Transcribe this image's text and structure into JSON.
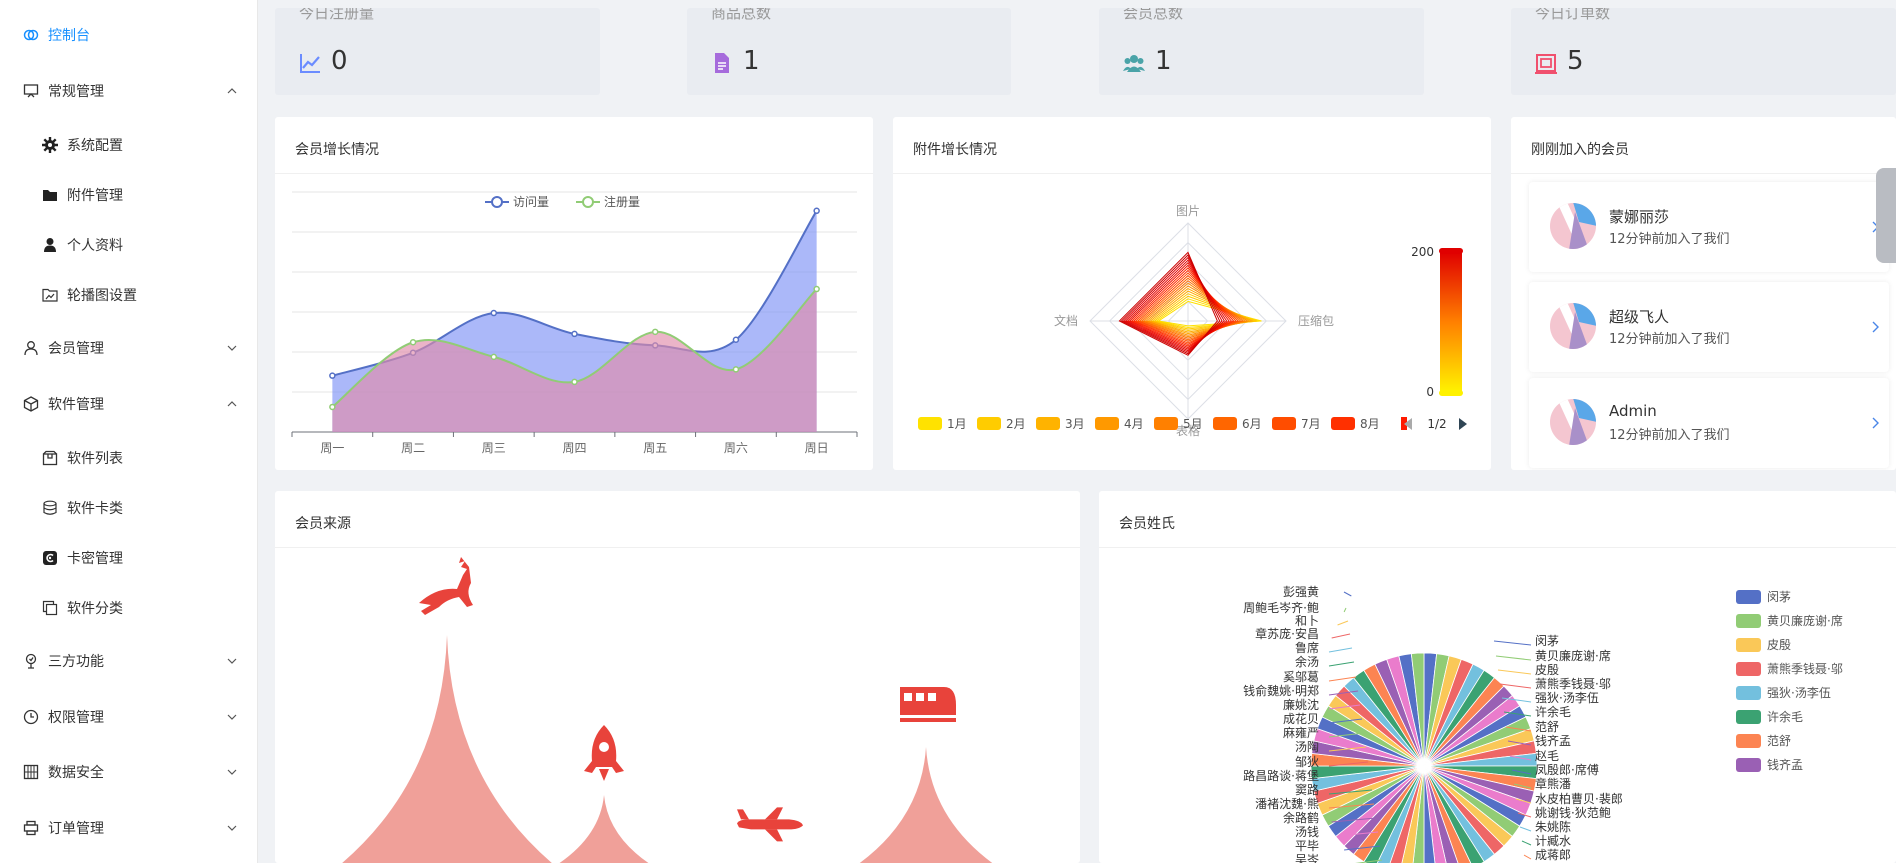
{
  "sidebar": {
    "items": [
      {
        "label": "控制台",
        "icon": "dashboard-icon",
        "active": true,
        "level": 0
      },
      {
        "label": "常规管理",
        "icon": "presentation-icon",
        "expanded": true,
        "level": 0
      },
      {
        "label": "系统配置",
        "icon": "gear-icon",
        "level": 1
      },
      {
        "label": "附件管理",
        "icon": "folder-icon",
        "level": 1
      },
      {
        "label": "个人资料",
        "icon": "user-icon",
        "level": 1
      },
      {
        "label": "轮播图设置",
        "icon": "image-icon",
        "level": 1
      },
      {
        "label": "会员管理",
        "icon": "person-icon",
        "expanded": false,
        "level": 0
      },
      {
        "label": "软件管理",
        "icon": "cube-icon",
        "expanded": true,
        "level": 0
      },
      {
        "label": "软件列表",
        "icon": "package-icon",
        "level": 1
      },
      {
        "label": "软件卡类",
        "icon": "database-icon",
        "level": 1
      },
      {
        "label": "卡密管理",
        "icon": "key-card-icon",
        "level": 1
      },
      {
        "label": "软件分类",
        "icon": "copy-icon",
        "level": 1
      },
      {
        "label": "三方功能",
        "icon": "plant-icon",
        "expanded": false,
        "level": 0
      },
      {
        "label": "权限管理",
        "icon": "clock-icon",
        "expanded": false,
        "level": 0
      },
      {
        "label": "数据安全",
        "icon": "grid-icon",
        "expanded": false,
        "level": 0
      },
      {
        "label": "订单管理",
        "icon": "printer-icon",
        "expanded": false,
        "level": 0
      }
    ]
  },
  "stats": [
    {
      "title": "今日注册量",
      "value": "0",
      "icon": "line-chart-icon",
      "color": "#6b8cff"
    },
    {
      "title": "商品总数",
      "value": "1",
      "icon": "file-icon",
      "color": "#a66bdc"
    },
    {
      "title": "会员总数",
      "value": "1",
      "icon": "users-icon",
      "color": "#4aa3a8"
    },
    {
      "title": "今日订单数",
      "value": "5",
      "icon": "order-icon",
      "color": "#f0506e"
    }
  ],
  "member_growth": {
    "title": "会员增长情况",
    "chart_data": {
      "type": "area",
      "categories": [
        "周一",
        "周二",
        "周三",
        "周四",
        "周五",
        "周六",
        "周日"
      ],
      "series": [
        {
          "name": "访问量",
          "values": [
            120,
            230,
            420,
            320,
            265,
            292,
            910
          ],
          "color": "#5470c6"
        },
        {
          "name": "注册量",
          "values": [
            -30,
            280,
            210,
            90,
            330,
            150,
            535
          ],
          "color": "#91cc75"
        }
      ],
      "ylim": [
        -150,
        1000
      ]
    }
  },
  "attachment_growth": {
    "title": "附件增长情况",
    "chart_data": {
      "type": "radar",
      "indicators": [
        "图片",
        "压缩包",
        "表格",
        "文档"
      ],
      "months": [
        "1月",
        "2月",
        "3月",
        "4月",
        "5月",
        "6月",
        "7月",
        "8月"
      ],
      "legend_colors": [
        "#ffe200",
        "#ffcc00",
        "#ffb300",
        "#ff9900",
        "#ff8000",
        "#ff6600",
        "#ff4d00",
        "#ff3000"
      ],
      "visual_map": {
        "max": "200",
        "min": "0"
      },
      "pager": "1/2"
    }
  },
  "recent_members": {
    "title": "刚刚加入的会员",
    "items": [
      {
        "name": "蒙娜丽莎",
        "time": "12分钟前加入了我们"
      },
      {
        "name": "超级飞人",
        "time": "12分钟前加入了我们"
      },
      {
        "name": "Admin",
        "time": "12分钟前加入了我们"
      }
    ]
  },
  "member_source": {
    "title": "会员来源",
    "chart_data": {
      "type": "pictorial-bar",
      "series": [
        {
          "icon": "deer-icon",
          "value": 80
        },
        {
          "icon": "rocket-icon",
          "value": 30
        },
        {
          "icon": "plane-icon",
          "value": 8
        },
        {
          "icon": "train-icon",
          "value": 45
        }
      ],
      "color": "#f0a099",
      "icon_color": "#e8433b"
    }
  },
  "member_surnames": {
    "title": "会员姓氏",
    "chart_data": {
      "type": "pie",
      "labels_left": [
        "彭强黄",
        "周鲍毛岑齐·鲍",
        "和卜",
        "章苏庞·安昌",
        "鲁席",
        "余汤",
        "奚邬葛",
        "钱俞魏姚·明郑",
        "廉姚沈",
        "成花贝",
        "麻雍严",
        "汤陶",
        "邹狄",
        "路昌路谈·蒋堡",
        "窦路",
        "潘褚沈魏·熊",
        "余路鹤",
        "汤钱",
        "平毕",
        "吴岑"
      ],
      "labels_right": [
        "闵茅",
        "黄贝廉庞谢·席",
        "皮殷",
        "萧熊季钱聂·邬",
        "强狄·汤李伍",
        "许余毛",
        "范舒",
        "钱齐孟",
        "赵毛",
        "凤殷郎·席傅",
        "章熊潘",
        "水皮柏曹贝·裴郎",
        "姚谢钱·狄范鲍",
        "朱姚陈",
        "计臧水",
        "成蒋郎"
      ],
      "legend": [
        {
          "name": "闵茅",
          "color": "#5470c6"
        },
        {
          "name": "黄贝廉庞谢·席",
          "color": "#91cc75"
        },
        {
          "name": "皮殷",
          "color": "#fac858"
        },
        {
          "name": "萧熊季钱聂·邬",
          "color": "#ee6666"
        },
        {
          "name": "强狄·汤李伍",
          "color": "#73c0de"
        },
        {
          "name": "许余毛",
          "color": "#3ba272"
        },
        {
          "name": "范舒",
          "color": "#fc8452"
        },
        {
          "name": "钱齐孟",
          "color": "#9a60b4"
        }
      ]
    }
  }
}
